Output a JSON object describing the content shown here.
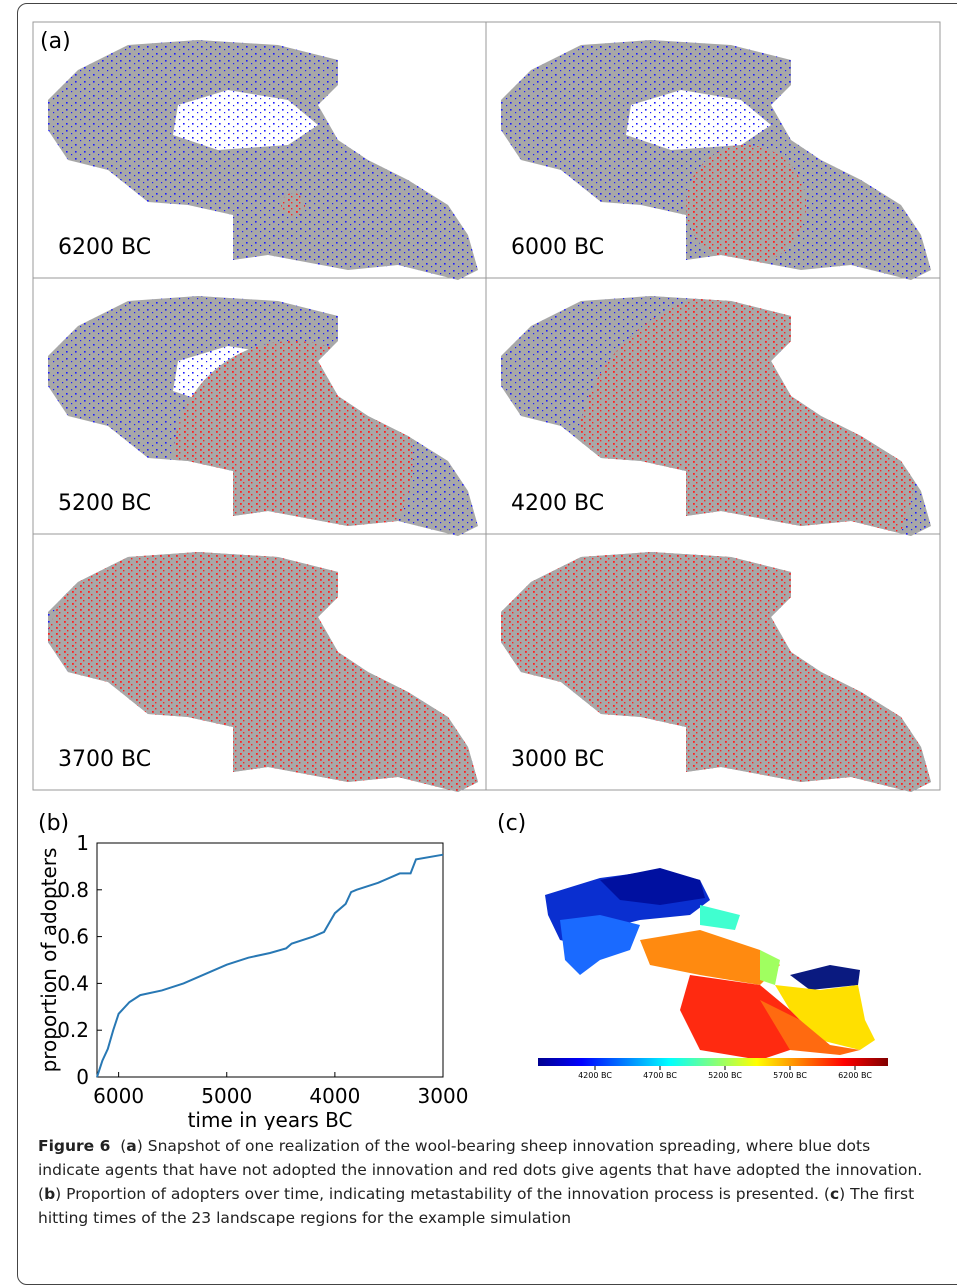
{
  "panel_a": {
    "label": "(a)",
    "maps": [
      "6200 BC",
      "6000 BC",
      "5200 BC",
      "4200 BC",
      "3700 BC",
      "3000 BC"
    ]
  },
  "chart_data": {
    "type": "line",
    "panel_label": "(b)",
    "xlabel": "time in years BC",
    "ylabel": "proportion of adopters",
    "x": [
      6200,
      6150,
      6100,
      6050,
      6000,
      5900,
      5800,
      5600,
      5400,
      5200,
      5000,
      4800,
      4600,
      4450,
      4400,
      4200,
      4100,
      4050,
      4000,
      3900,
      3850,
      3800,
      3600,
      3400,
      3300,
      3250,
      3000
    ],
    "series": [
      {
        "name": "proportion of adopters",
        "color": "#2878b4",
        "values": [
          0,
          0.07,
          0.12,
          0.2,
          0.27,
          0.32,
          0.35,
          0.37,
          0.4,
          0.44,
          0.48,
          0.51,
          0.53,
          0.55,
          0.57,
          0.6,
          0.62,
          0.66,
          0.7,
          0.74,
          0.79,
          0.8,
          0.83,
          0.87,
          0.87,
          0.93,
          0.95
        ]
      }
    ],
    "xlim": [
      6200,
      3000
    ],
    "xticks": [
      6000,
      5000,
      4000,
      3000
    ],
    "ylim": [
      0,
      1
    ],
    "yticks": [
      0,
      0.2,
      0.4,
      0.6,
      0.8,
      1
    ]
  },
  "panel_c": {
    "label": "(c)",
    "colorbar_ticks": [
      "4200 BC",
      "4700 BC",
      "5200 BC",
      "5700 BC",
      "6200 BC"
    ]
  },
  "caption": {
    "label": "Figure 6",
    "parts": [
      "(",
      "a",
      ") Snapshot of one realization of the wool-bearing sheep innovation spreading, where blue dots indicate agents that have not adopted the innovation and red dots give agents that have adopted the innovation. (",
      "b",
      ") Proportion of adopters over time, indicating metastability of the innovation process is presented. (",
      "c",
      ") The first hitting times of the 23 landscape regions for the example simulation"
    ]
  }
}
